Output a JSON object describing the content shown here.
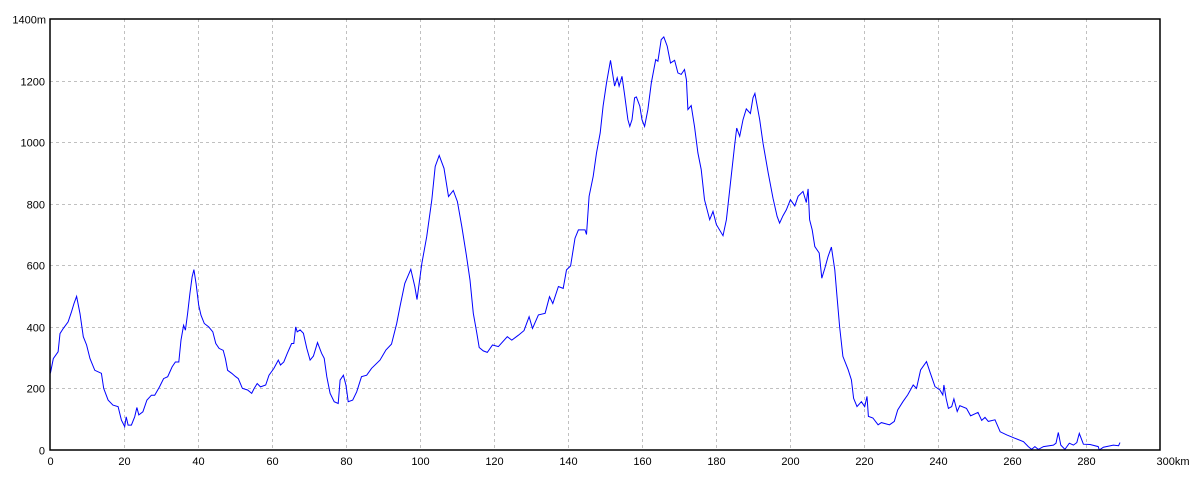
{
  "chart_data": {
    "type": "line",
    "title": "",
    "xlabel": "",
    "ylabel": "",
    "xlim": [
      0,
      300
    ],
    "ylim": [
      0,
      1400
    ],
    "x_unit": "km",
    "y_unit": "m",
    "grid": true,
    "grid_style": "dashed",
    "line_color": "#0000ff",
    "grid_color": "#c0c0c0",
    "x_ticks": [
      {
        "value": 0,
        "label": "0"
      },
      {
        "value": 20,
        "label": "20"
      },
      {
        "value": 40,
        "label": "40"
      },
      {
        "value": 60,
        "label": "60"
      },
      {
        "value": 80,
        "label": "80"
      },
      {
        "value": 100,
        "label": "100"
      },
      {
        "value": 120,
        "label": "120"
      },
      {
        "value": 140,
        "label": "140"
      },
      {
        "value": 160,
        "label": "160"
      },
      {
        "value": 180,
        "label": "180"
      },
      {
        "value": 200,
        "label": "200"
      },
      {
        "value": 220,
        "label": "220"
      },
      {
        "value": 240,
        "label": "240"
      },
      {
        "value": 260,
        "label": "260"
      },
      {
        "value": 280,
        "label": "280"
      },
      {
        "value": 300,
        "label": "300km"
      }
    ],
    "y_ticks": [
      {
        "value": 0,
        "label": "0"
      },
      {
        "value": 200,
        "label": "200"
      },
      {
        "value": 400,
        "label": "400"
      },
      {
        "value": 600,
        "label": "600"
      },
      {
        "value": 800,
        "label": "800"
      },
      {
        "value": 1000,
        "label": "1000"
      },
      {
        "value": 1200,
        "label": "1200"
      },
      {
        "value": 1400,
        "label": "1400m"
      }
    ],
    "series": [
      {
        "points": [
          [
            0,
            281
          ],
          [
            0.1,
            249
          ],
          [
            0.9,
            297
          ],
          [
            2.2,
            319
          ],
          [
            2.7,
            378
          ],
          [
            3.6,
            395
          ],
          [
            4.9,
            416
          ],
          [
            5.8,
            449
          ],
          [
            6.5,
            476
          ],
          [
            7.2,
            499
          ],
          [
            8.1,
            443
          ],
          [
            9,
            368
          ],
          [
            9.9,
            341
          ],
          [
            10.8,
            297
          ],
          [
            12.1,
            259
          ],
          [
            13.9,
            249
          ],
          [
            14.5,
            200
          ],
          [
            15.7,
            162
          ],
          [
            17,
            146
          ],
          [
            18.4,
            141
          ],
          [
            19.3,
            97
          ],
          [
            20.2,
            76
          ],
          [
            20.6,
            108
          ],
          [
            21.1,
            81
          ],
          [
            22,
            81
          ],
          [
            22.9,
            108
          ],
          [
            23.5,
            138
          ],
          [
            24,
            114
          ],
          [
            25.1,
            124
          ],
          [
            26.2,
            162
          ],
          [
            27.4,
            178
          ],
          [
            28.3,
            178
          ],
          [
            29.6,
            205
          ],
          [
            30.7,
            232
          ],
          [
            31.8,
            238
          ],
          [
            33,
            270
          ],
          [
            33.9,
            286
          ],
          [
            34.8,
            286
          ],
          [
            35.4,
            357
          ],
          [
            36.1,
            405
          ],
          [
            36.6,
            389
          ],
          [
            37.2,
            443
          ],
          [
            37.8,
            508
          ],
          [
            38.4,
            562
          ],
          [
            38.9,
            586
          ],
          [
            39.5,
            540
          ],
          [
            40.2,
            470
          ],
          [
            40.8,
            438
          ],
          [
            41.7,
            411
          ],
          [
            42.9,
            400
          ],
          [
            44,
            384
          ],
          [
            44.8,
            346
          ],
          [
            45.7,
            330
          ],
          [
            46.8,
            324
          ],
          [
            47.4,
            297
          ],
          [
            48,
            259
          ],
          [
            49.1,
            249
          ],
          [
            50.2,
            238
          ],
          [
            50.9,
            232
          ],
          [
            52,
            200
          ],
          [
            53.4,
            195
          ],
          [
            54.5,
            184
          ],
          [
            55.2,
            200
          ],
          [
            56,
            216
          ],
          [
            56.9,
            205
          ],
          [
            58.3,
            211
          ],
          [
            59.2,
            243
          ],
          [
            60.5,
            265
          ],
          [
            61.7,
            292
          ],
          [
            62.3,
            276
          ],
          [
            63.2,
            286
          ],
          [
            64.1,
            313
          ],
          [
            65.3,
            346
          ],
          [
            65.9,
            346
          ],
          [
            66.4,
            400
          ],
          [
            66.8,
            384
          ],
          [
            67.6,
            390
          ],
          [
            68.5,
            379
          ],
          [
            69.4,
            330
          ],
          [
            70.3,
            292
          ],
          [
            71.2,
            305
          ],
          [
            72.3,
            349
          ],
          [
            73.4,
            314
          ],
          [
            74.1,
            298
          ],
          [
            74.8,
            238
          ],
          [
            75.7,
            184
          ],
          [
            76.8,
            157
          ],
          [
            77.9,
            151
          ],
          [
            78.4,
            227
          ],
          [
            79.3,
            243
          ],
          [
            80,
            210
          ],
          [
            80.6,
            157
          ],
          [
            81.8,
            162
          ],
          [
            82.9,
            189
          ],
          [
            84.2,
            238
          ],
          [
            85.6,
            243
          ],
          [
            86.9,
            265
          ],
          [
            89.2,
            292
          ],
          [
            90.8,
            325
          ],
          [
            92.3,
            344
          ],
          [
            93.7,
            411
          ],
          [
            94.6,
            466
          ],
          [
            95.9,
            541
          ],
          [
            97.5,
            587
          ],
          [
            98.6,
            531
          ],
          [
            99.2,
            489
          ],
          [
            100.5,
            607
          ],
          [
            101.8,
            693
          ],
          [
            103.2,
            812
          ],
          [
            104.1,
            921
          ],
          [
            105.2,
            957
          ],
          [
            106.5,
            915
          ],
          [
            107.7,
            823
          ],
          [
            109,
            843
          ],
          [
            110.1,
            807
          ],
          [
            111.3,
            726
          ],
          [
            112.5,
            634
          ],
          [
            113.5,
            552
          ],
          [
            114.4,
            444
          ],
          [
            115.3,
            384
          ],
          [
            116,
            333
          ],
          [
            117.1,
            322
          ],
          [
            118.2,
            317
          ],
          [
            119.6,
            341
          ],
          [
            121.2,
            336
          ],
          [
            123.6,
            368
          ],
          [
            124.8,
            357
          ],
          [
            126.6,
            373
          ],
          [
            128.1,
            388
          ],
          [
            129.5,
            433
          ],
          [
            130.4,
            395
          ],
          [
            132,
            439
          ],
          [
            133.8,
            444
          ],
          [
            135,
            498
          ],
          [
            135.9,
            476
          ],
          [
            137.4,
            531
          ],
          [
            138.7,
            525
          ],
          [
            139.6,
            585
          ],
          [
            140.7,
            598
          ],
          [
            141.9,
            688
          ],
          [
            142.8,
            715
          ],
          [
            144.6,
            715
          ],
          [
            145,
            700
          ],
          [
            145.7,
            824
          ],
          [
            146.8,
            889
          ],
          [
            147.7,
            965
          ],
          [
            148.7,
            1030
          ],
          [
            149.5,
            1117
          ],
          [
            150.4,
            1192
          ],
          [
            151.5,
            1266
          ],
          [
            152.6,
            1182
          ],
          [
            153.3,
            1209
          ],
          [
            153.8,
            1182
          ],
          [
            154.6,
            1214
          ],
          [
            155.3,
            1154
          ],
          [
            156.2,
            1073
          ],
          [
            156.7,
            1051
          ],
          [
            157.3,
            1073
          ],
          [
            158,
            1144
          ],
          [
            158.5,
            1147
          ],
          [
            159.4,
            1117
          ],
          [
            160,
            1073
          ],
          [
            160.7,
            1051
          ],
          [
            161.6,
            1106
          ],
          [
            162.5,
            1192
          ],
          [
            163.7,
            1268
          ],
          [
            164.3,
            1263
          ],
          [
            165.2,
            1333
          ],
          [
            165.9,
            1342
          ],
          [
            166.8,
            1312
          ],
          [
            167.7,
            1257
          ],
          [
            168.8,
            1266
          ],
          [
            169.7,
            1225
          ],
          [
            170.6,
            1220
          ],
          [
            171.5,
            1236
          ],
          [
            172,
            1203
          ],
          [
            172.4,
            1106
          ],
          [
            173.3,
            1119
          ],
          [
            174.2,
            1051
          ],
          [
            175.1,
            965
          ],
          [
            176,
            911
          ],
          [
            176.9,
            813
          ],
          [
            178.3,
            748
          ],
          [
            179.2,
            775
          ],
          [
            180.1,
            732
          ],
          [
            181.9,
            696
          ],
          [
            182.8,
            748
          ],
          [
            184.1,
            889
          ],
          [
            185,
            986
          ],
          [
            185.6,
            1046
          ],
          [
            186.4,
            1019
          ],
          [
            187.3,
            1073
          ],
          [
            188.2,
            1108
          ],
          [
            189.3,
            1093
          ],
          [
            190,
            1144
          ],
          [
            190.5,
            1158
          ],
          [
            191.8,
            1073
          ],
          [
            192.7,
            997
          ],
          [
            194.1,
            900
          ],
          [
            195.4,
            818
          ],
          [
            196.5,
            759
          ],
          [
            197.2,
            737
          ],
          [
            198.1,
            761
          ],
          [
            199,
            780
          ],
          [
            200.1,
            813
          ],
          [
            201.3,
            793
          ],
          [
            202.2,
            824
          ],
          [
            203.5,
            840
          ],
          [
            204.4,
            804
          ],
          [
            204.9,
            848
          ],
          [
            205.3,
            748
          ],
          [
            206,
            715
          ],
          [
            206.7,
            661
          ],
          [
            207.9,
            640
          ],
          [
            208.6,
            558
          ],
          [
            209.4,
            590
          ],
          [
            210.3,
            629
          ],
          [
            211.2,
            659
          ],
          [
            212.1,
            585
          ],
          [
            212.7,
            499
          ],
          [
            213.4,
            401
          ],
          [
            214.3,
            304
          ],
          [
            215.7,
            261
          ],
          [
            216.6,
            228
          ],
          [
            217.2,
            168
          ],
          [
            218.1,
            141
          ],
          [
            219.3,
            157
          ],
          [
            220.2,
            141
          ],
          [
            220.8,
            174
          ],
          [
            221.2,
            109
          ],
          [
            222.4,
            104
          ],
          [
            223.8,
            82
          ],
          [
            224.7,
            89
          ],
          [
            226.9,
            82
          ],
          [
            228.2,
            93
          ],
          [
            229.1,
            130
          ],
          [
            230.5,
            157
          ],
          [
            231.8,
            179
          ],
          [
            233.3,
            211
          ],
          [
            234.2,
            200
          ],
          [
            235.3,
            260
          ],
          [
            236.9,
            287
          ],
          [
            237.8,
            254
          ],
          [
            239.2,
            206
          ],
          [
            240.5,
            195
          ],
          [
            241.3,
            179
          ],
          [
            241.6,
            211
          ],
          [
            242.2,
            168
          ],
          [
            242.8,
            135
          ],
          [
            243.7,
            141
          ],
          [
            244.3,
            166
          ],
          [
            245.2,
            125
          ],
          [
            245.9,
            144
          ],
          [
            247.7,
            135
          ],
          [
            248.8,
            111
          ],
          [
            250.8,
            122
          ],
          [
            251.8,
            96
          ],
          [
            252.7,
            106
          ],
          [
            253.6,
            93
          ],
          [
            255.4,
            98
          ],
          [
            256.8,
            59
          ],
          [
            258.6,
            49
          ],
          [
            260.8,
            38
          ],
          [
            263.1,
            27
          ],
          [
            264.4,
            11
          ],
          [
            265.3,
            2
          ],
          [
            266.2,
            11
          ],
          [
            267.1,
            2
          ],
          [
            268.5,
            11
          ],
          [
            271.2,
            16
          ],
          [
            271.9,
            22
          ],
          [
            272.5,
            57
          ],
          [
            273.2,
            16
          ],
          [
            274.3,
            2
          ],
          [
            275.5,
            22
          ],
          [
            276.6,
            16
          ],
          [
            277.5,
            24
          ],
          [
            278.2,
            54
          ],
          [
            279.3,
            19
          ],
          [
            281.1,
            18
          ],
          [
            283.3,
            11
          ],
          [
            283.6,
            0
          ],
          [
            284.7,
            9
          ],
          [
            287.4,
            16
          ],
          [
            288.8,
            14
          ],
          [
            289.2,
            24
          ]
        ]
      }
    ]
  }
}
